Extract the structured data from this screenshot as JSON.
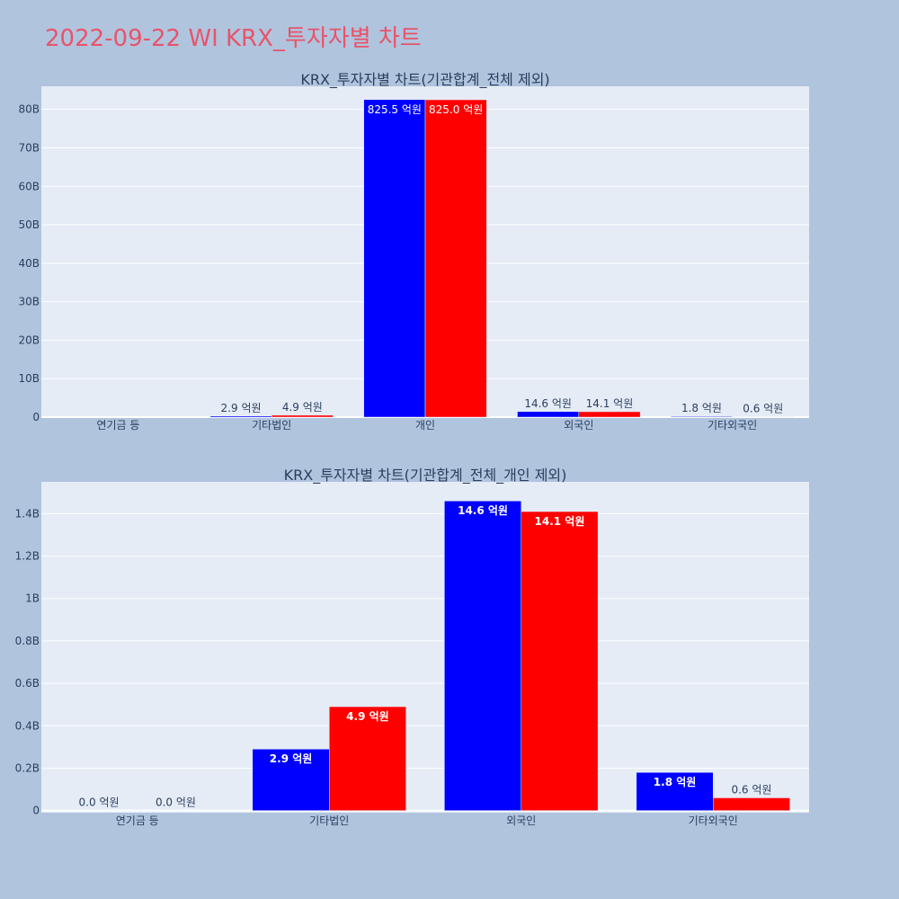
{
  "page_title": "2022-09-22 WI KRX_투자자별 차트",
  "colors": {
    "series1": "#0000ff",
    "series2": "#ff0000",
    "title": "#e8546a",
    "background": "#b0c4de",
    "plot_bg": "#e5ecf6"
  },
  "chart_data": [
    {
      "type": "bar",
      "title": "KRX_투자자별 차트(기관합계_전체 제외)",
      "categories": [
        "연기금 등",
        "기타법인",
        "개인",
        "외국인",
        "기타외국인"
      ],
      "ylim": [
        0,
        86000000000
      ],
      "yticks": [
        0,
        10000000000,
        20000000000,
        30000000000,
        40000000000,
        50000000000,
        60000000000,
        70000000000,
        80000000000
      ],
      "ytick_labels": [
        "0",
        "10B",
        "20B",
        "30B",
        "40B",
        "50B",
        "60B",
        "70B",
        "80B"
      ],
      "grid": true,
      "series": [
        {
          "values": [
            0,
            290000000,
            82550000000,
            1460000000,
            180000000
          ],
          "labels": [
            "",
            "2.9 억원",
            "825.5 억원",
            "14.6 억원",
            "1.8 억원"
          ]
        },
        {
          "values": [
            0,
            490000000,
            82500000000,
            1410000000,
            60000000
          ],
          "labels": [
            "",
            "4.9 억원",
            "825.0 억원",
            "14.1 억원",
            "0.6 억원"
          ]
        }
      ]
    },
    {
      "type": "bar",
      "title": "KRX_투자자별 차트(기관합계_전체_개인 제외)",
      "categories": [
        "연기금 등",
        "기타법인",
        "외국인",
        "기타외국인"
      ],
      "ylim": [
        -10000000,
        1550000000
      ],
      "yticks": [
        0,
        200000000,
        400000000,
        600000000,
        800000000,
        1000000000,
        1200000000,
        1400000000
      ],
      "ytick_labels": [
        "0",
        "0.2B",
        "0.4B",
        "0.6B",
        "0.8B",
        "1B",
        "1.2B",
        "1.4B"
      ],
      "grid": true,
      "series": [
        {
          "values": [
            0,
            290000000,
            1460000000,
            180000000
          ],
          "labels": [
            "0.0 억원",
            "2.9 억원",
            "14.6 억원",
            "1.8 억원"
          ]
        },
        {
          "values": [
            0,
            490000000,
            1410000000,
            60000000
          ],
          "labels": [
            "0.0 억원",
            "4.9 억원",
            "14.1 억원",
            "0.6 억원"
          ]
        }
      ]
    }
  ]
}
